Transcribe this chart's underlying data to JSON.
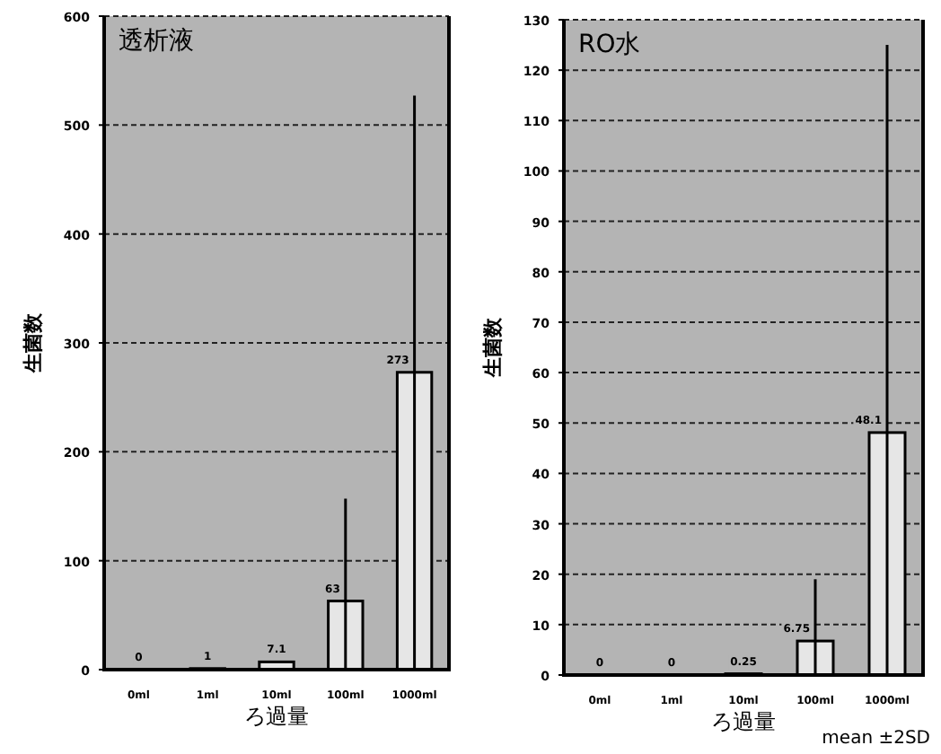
{
  "chart_data": [
    {
      "type": "bar",
      "title": "透析液",
      "xlabel": "ろ過量",
      "ylabel": "生菌数",
      "categories": [
        "0ml",
        "1ml",
        "10ml",
        "100ml",
        "1000ml"
      ],
      "values": [
        0,
        1,
        7.1,
        63,
        273
      ],
      "color": "#e6e6e6",
      "errors": [
        null,
        null,
        null,
        [
          0,
          157
        ],
        [
          0,
          527
        ]
      ],
      "data_labels": true,
      "ylim": [
        0,
        600
      ],
      "yticks": [
        0,
        100,
        200,
        300,
        400,
        500,
        600
      ],
      "grid": "y"
    },
    {
      "type": "bar",
      "title": "RO水",
      "xlabel": "ろ過量",
      "ylabel": "生菌数",
      "categories": [
        "0ml",
        "1ml",
        "10ml",
        "100ml",
        "1000ml"
      ],
      "values": [
        0,
        0,
        0.25,
        6.75,
        48.1
      ],
      "color": "#e6e6e6",
      "errors": [
        null,
        null,
        null,
        [
          0,
          19
        ],
        [
          0,
          125
        ]
      ],
      "data_labels": true,
      "ylim": [
        0,
        130
      ],
      "yticks": [
        0,
        10,
        20,
        30,
        40,
        50,
        60,
        70,
        80,
        90,
        100,
        110,
        120,
        130
      ],
      "grid": "y",
      "annotations": [
        "mean ±2SD"
      ]
    }
  ]
}
